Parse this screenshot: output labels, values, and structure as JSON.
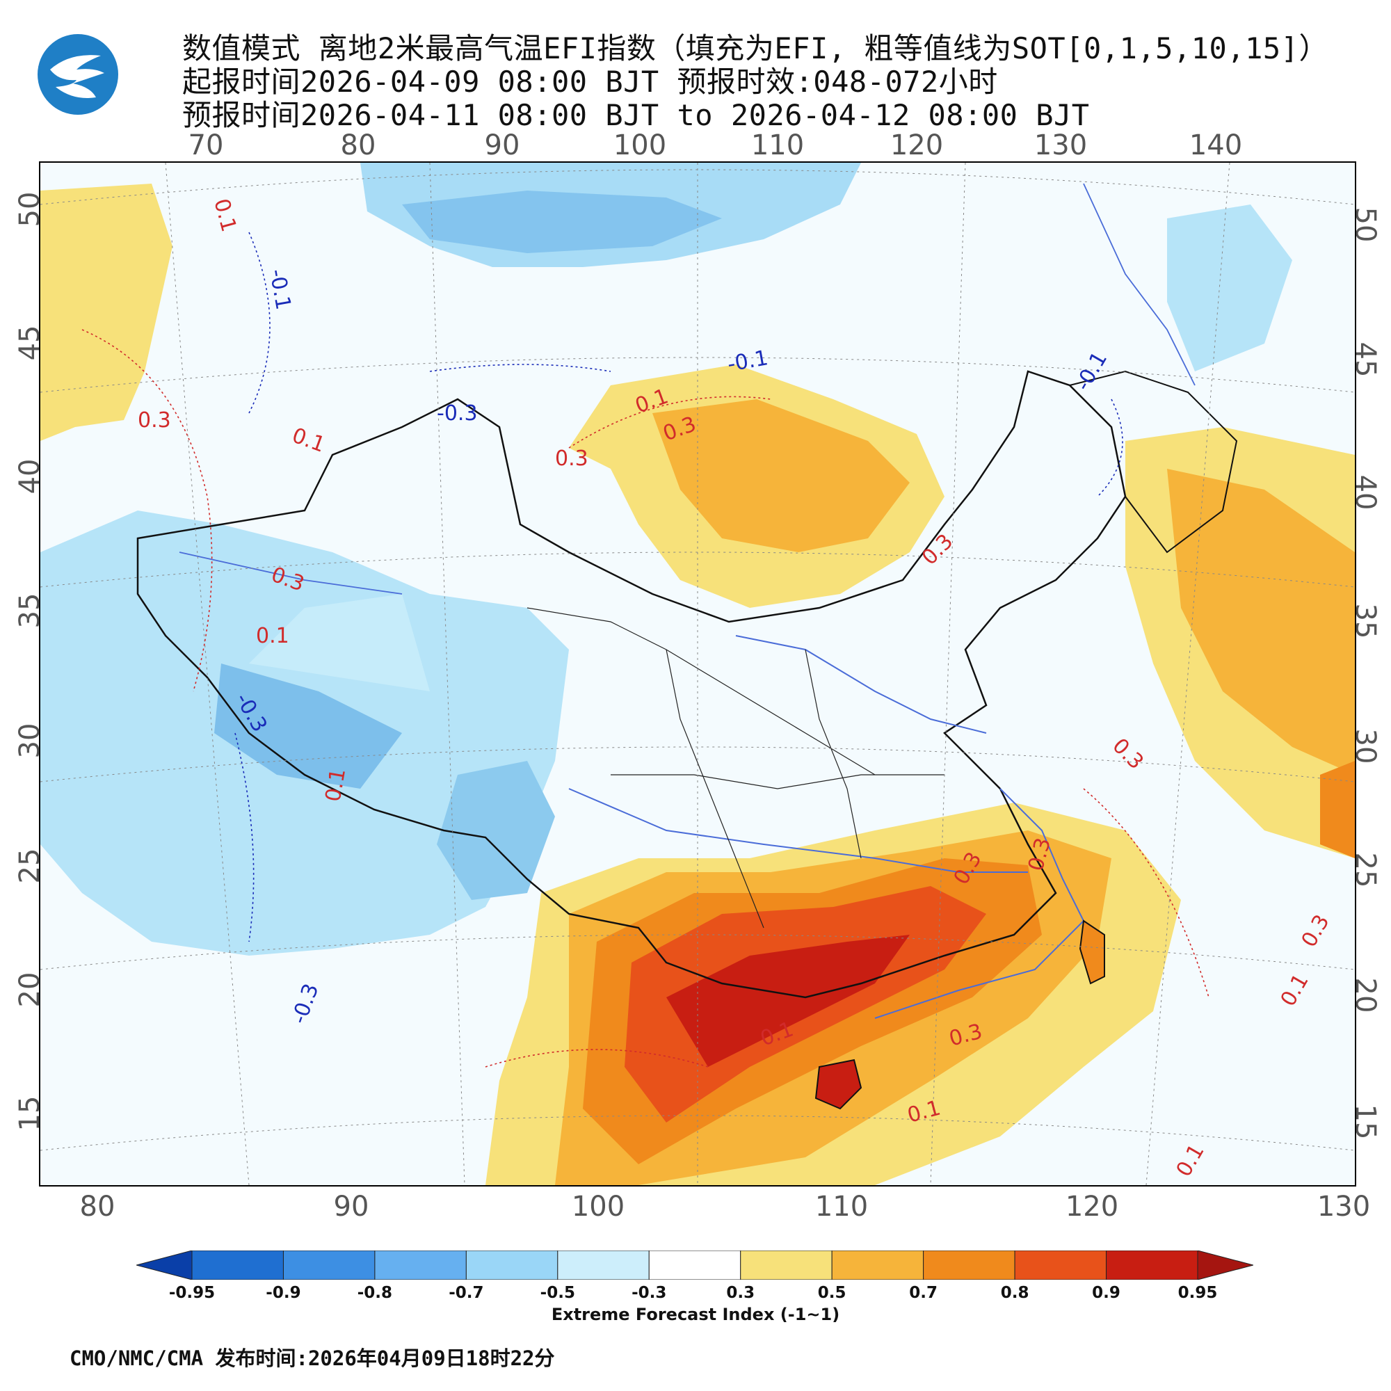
{
  "header": {
    "title_line1": "数值模式 离地2米最高气温EFI指数（填充为EFI, 粗等值线为SOT[0,1,5,10,15]）",
    "title_line2": "起报时间2026-04-09 08:00 BJT 预报时效:048-072小时",
    "title_line3": "预报时间2026-04-11 08:00 BJT to 2026-04-12 08:00 BJT"
  },
  "logo": {
    "icon": "cma-logo"
  },
  "axes": {
    "top_lon_ticks": [
      "70",
      "80",
      "90",
      "100",
      "110",
      "120",
      "130",
      "140"
    ],
    "bottom_lon_ticks": [
      "80",
      "90",
      "100",
      "110",
      "120",
      "130"
    ],
    "lat_ticks": [
      "50",
      "45",
      "40",
      "35",
      "30",
      "25",
      "20",
      "15"
    ]
  },
  "contour_labels": [
    "0.1",
    "-0.1",
    "0.3",
    "-0.3",
    "0.1",
    "0.3",
    "0.1",
    "0.3",
    "-0.1",
    "0.3",
    "0.1",
    "-0.3",
    "0.3",
    "0.3",
    "-0.1",
    "0.1",
    "0.3",
    "0.1",
    "-0.3",
    "0.3",
    "0.1",
    "0.3",
    "0.1",
    "0.3",
    "0.1"
  ],
  "colorbar": {
    "labels": [
      "-0.95",
      "-0.9",
      "-0.8",
      "-0.7",
      "-0.5",
      "-0.3",
      "0.3",
      "0.5",
      "0.7",
      "0.8",
      "0.9",
      "0.95"
    ],
    "colors": [
      "#0a3fa8",
      "#1f6fd1",
      "#3d8fe3",
      "#66b0f0",
      "#9ad6f7",
      "#cdeefb",
      "#ffffff",
      "#f7e17a",
      "#f6b43a",
      "#f08a1c",
      "#e8521a",
      "#c81e12",
      "#a51510"
    ],
    "title": "Extreme Forecast Index (-1~1)"
  },
  "footer": {
    "text": "CMO/NMC/CMA 发布时间:2026年04月09日18时22分"
  }
}
